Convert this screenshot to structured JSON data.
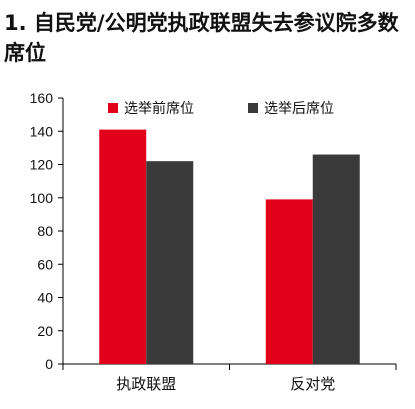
{
  "page": {
    "title": "1. 自民党/公明党执政联盟失去参议院多数席位"
  },
  "chart_data": {
    "type": "bar",
    "title": "1. 自民党/公明党执政联盟失去参议院多数席位",
    "xlabel": "",
    "ylabel": "",
    "categories": [
      "执政联盟",
      "反对党"
    ],
    "series": [
      {
        "name": "选举前席位",
        "values": [
          141,
          99
        ],
        "color": "#e0001a"
      },
      {
        "name": "选举后席位",
        "values": [
          122,
          126
        ],
        "color": "#3a3a3a"
      }
    ],
    "ylim": [
      0,
      160
    ],
    "yticks": [
      0,
      20,
      40,
      60,
      80,
      100,
      120,
      140,
      160
    ],
    "grid": false,
    "legend_position": "top"
  }
}
